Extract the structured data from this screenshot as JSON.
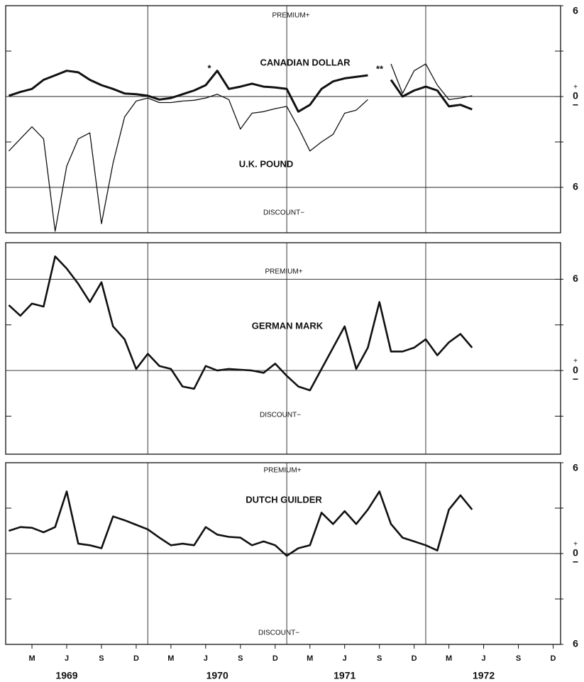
{
  "chart_data": [
    {
      "type": "line",
      "premium_label": "PREMIUM+",
      "discount_label": "DISCOUNT−",
      "zero_signs": [
        "+",
        "−"
      ],
      "x": [
        "1969-01",
        "1969-02",
        "1969-03",
        "1969-04",
        "1969-05",
        "1969-06",
        "1969-07",
        "1969-08",
        "1969-09",
        "1969-10",
        "1969-11",
        "1969-12",
        "1970-01",
        "1970-02",
        "1970-03",
        "1970-04",
        "1970-05",
        "1970-06",
        "1970-07",
        "1970-08",
        "1970-09",
        "1970-10",
        "1970-11",
        "1970-12",
        "1971-01",
        "1971-02",
        "1971-03",
        "1971-04",
        "1971-05",
        "1971-06",
        "1971-07",
        "1971-08",
        "1971-09",
        "1971-10",
        "1971-11",
        "1971-12",
        "1972-01",
        "1972-02",
        "1972-03",
        "1972-04",
        "1972-05"
      ],
      "xlim": [
        "1969-01",
        "1972-12"
      ],
      "xgrid": [
        "1970-01",
        "1971-01",
        "1972-01"
      ],
      "ylim": [
        -9,
        6
      ],
      "yticks": [
        6,
        0,
        {
          "value": -6,
          "label": "6"
        }
      ],
      "minor_yticks": [
        3,
        -3
      ],
      "hgrid": [
        0,
        -6
      ],
      "annotations": [
        "*",
        "**"
      ],
      "series": [
        {
          "name": "CANADIAN DOLLAR",
          "color": "#111111",
          "width": 3,
          "values": [
            0.05,
            0.3,
            0.5,
            1.1,
            1.4,
            1.7,
            1.6,
            1.1,
            0.75,
            0.5,
            0.2,
            0.15,
            0.05,
            -0.2,
            -0.1,
            0.15,
            0.4,
            0.75,
            1.7,
            0.5,
            0.65,
            0.85,
            0.65,
            0.6,
            0.5,
            -1.0,
            -0.55,
            0.5,
            1.0,
            1.2,
            1.3,
            1.4,
            null,
            1.1,
            0.0,
            0.4,
            0.65,
            0.4,
            -0.65,
            -0.55,
            -0.85
          ]
        },
        {
          "name": "U.K. POUND",
          "color": "#111111",
          "width": 1.3,
          "values": [
            -3.6,
            -2.8,
            -2.0,
            -2.8,
            -8.9,
            -4.6,
            -2.8,
            -2.4,
            -8.4,
            -4.4,
            -1.35,
            -0.3,
            -0.1,
            -0.4,
            -0.4,
            -0.3,
            -0.25,
            -0.1,
            0.15,
            -0.2,
            -2.15,
            -1.1,
            -1.0,
            -0.8,
            -0.65,
            -2.05,
            -3.6,
            -3.0,
            -2.5,
            -1.1,
            -0.9,
            -0.2,
            null,
            2.15,
            0.2,
            1.7,
            2.15,
            0.75,
            -0.2,
            -0.1,
            0.05
          ]
        }
      ]
    },
    {
      "type": "line",
      "premium_label": "PREMIUM+",
      "discount_label": "DISCOUNT−",
      "zero_signs": [
        "+",
        "−"
      ],
      "x": [
        "1969-01",
        "1969-02",
        "1969-03",
        "1969-04",
        "1969-05",
        "1969-06",
        "1969-07",
        "1969-08",
        "1969-09",
        "1969-10",
        "1969-11",
        "1969-12",
        "1970-01",
        "1970-02",
        "1970-03",
        "1970-04",
        "1970-05",
        "1970-06",
        "1970-07",
        "1970-08",
        "1970-09",
        "1970-10",
        "1970-11",
        "1970-12",
        "1971-01",
        "1971-02",
        "1971-03",
        "1971-04",
        "1971-05",
        "1971-06",
        "1971-07",
        "1971-08",
        "1971-09",
        "1971-10",
        "1971-11",
        "1971-12",
        "1972-01",
        "1972-02",
        "1972-03",
        "1972-04",
        "1972-05"
      ],
      "xlim": [
        "1969-01",
        "1972-12"
      ],
      "xgrid": [
        "1970-01",
        "1971-01",
        "1972-01"
      ],
      "ylim": [
        -5.5,
        8.4
      ],
      "yticks": [
        6,
        0
      ],
      "minor_yticks": [
        3,
        -3
      ],
      "hgrid": [
        6,
        0
      ],
      "series": [
        {
          "name": "GERMAN MARK",
          "color": "#111111",
          "width": 2.6,
          "values": [
            4.3,
            3.6,
            4.4,
            4.2,
            7.5,
            6.7,
            5.7,
            4.5,
            5.8,
            2.9,
            2.05,
            0.1,
            1.1,
            0.3,
            0.1,
            -1.05,
            -1.2,
            0.3,
            0,
            0.1,
            0.05,
            0,
            -0.15,
            0.45,
            -0.35,
            -1.05,
            -1.3,
            0.1,
            1.5,
            2.9,
            0.1,
            1.5,
            4.5,
            1.25,
            1.25,
            1.5,
            2.05,
            1.0,
            1.85,
            2.4,
            1.5
          ]
        }
      ]
    },
    {
      "type": "line",
      "premium_label": "PREMIUM+",
      "discount_label": "DISCOUNT−",
      "zero_signs": [
        "+",
        "−"
      ],
      "x": [
        "1969-01",
        "1969-02",
        "1969-03",
        "1969-04",
        "1969-05",
        "1969-06",
        "1969-07",
        "1969-08",
        "1969-09",
        "1969-10",
        "1969-11",
        "1969-12",
        "1970-01",
        "1970-02",
        "1970-03",
        "1970-04",
        "1970-05",
        "1970-06",
        "1970-07",
        "1970-08",
        "1970-09",
        "1970-10",
        "1970-11",
        "1970-12",
        "1971-01",
        "1971-02",
        "1971-03",
        "1971-04",
        "1971-05",
        "1971-06",
        "1971-07",
        "1971-08",
        "1971-09",
        "1971-10",
        "1971-11",
        "1971-12",
        "1972-01",
        "1972-02",
        "1972-03",
        "1972-04",
        "1972-05"
      ],
      "xlim": [
        "1969-01",
        "1972-12"
      ],
      "xgrid": [
        "1970-01",
        "1971-01",
        "1972-01"
      ],
      "ylim": [
        -6,
        6
      ],
      "yticks": [
        6,
        0,
        {
          "value": -6,
          "label": "6"
        }
      ],
      "minor_yticks": [
        3,
        -3
      ],
      "hgrid": [
        0
      ],
      "xticks": [
        {
          "value": "1969-03",
          "label": "M"
        },
        {
          "value": "1969-06",
          "label": "J"
        },
        {
          "value": "1969-09",
          "label": "S"
        },
        {
          "value": "1969-12",
          "label": "D"
        },
        {
          "value": "1970-03",
          "label": "M"
        },
        {
          "value": "1970-06",
          "label": "J"
        },
        {
          "value": "1970-09",
          "label": "S"
        },
        {
          "value": "1970-12",
          "label": "D"
        },
        {
          "value": "1971-03",
          "label": "M"
        },
        {
          "value": "1971-06",
          "label": "J"
        },
        {
          "value": "1971-09",
          "label": "S"
        },
        {
          "value": "1971-12",
          "label": "D"
        },
        {
          "value": "1972-03",
          "label": "M"
        },
        {
          "value": "1972-06",
          "label": "J"
        },
        {
          "value": "1972-09",
          "label": "S"
        },
        {
          "value": "1972-12",
          "label": "D"
        }
      ],
      "year_labels": [
        {
          "value": "1969-06",
          "label": "1969"
        },
        {
          "value": "1970-07",
          "label": "1970"
        },
        {
          "value": "1971-06",
          "label": "1971"
        },
        {
          "value": "1972-06",
          "label": "1972"
        }
      ],
      "series": [
        {
          "name": "DUTCH GUILDER",
          "color": "#111111",
          "width": 2.6,
          "values": [
            1.5,
            1.75,
            1.7,
            1.4,
            1.75,
            4.1,
            0.65,
            0.55,
            0.35,
            2.45,
            2.2,
            1.9,
            1.6,
            1.05,
            0.55,
            0.65,
            0.55,
            1.75,
            1.25,
            1.1,
            1.05,
            0.55,
            0.8,
            0.55,
            -0.15,
            0.35,
            0.55,
            2.7,
            1.95,
            2.8,
            1.95,
            2.9,
            4.1,
            1.95,
            1.05,
            0.8,
            0.55,
            0.2,
            2.9,
            3.85,
            2.9
          ]
        }
      ]
    }
  ]
}
